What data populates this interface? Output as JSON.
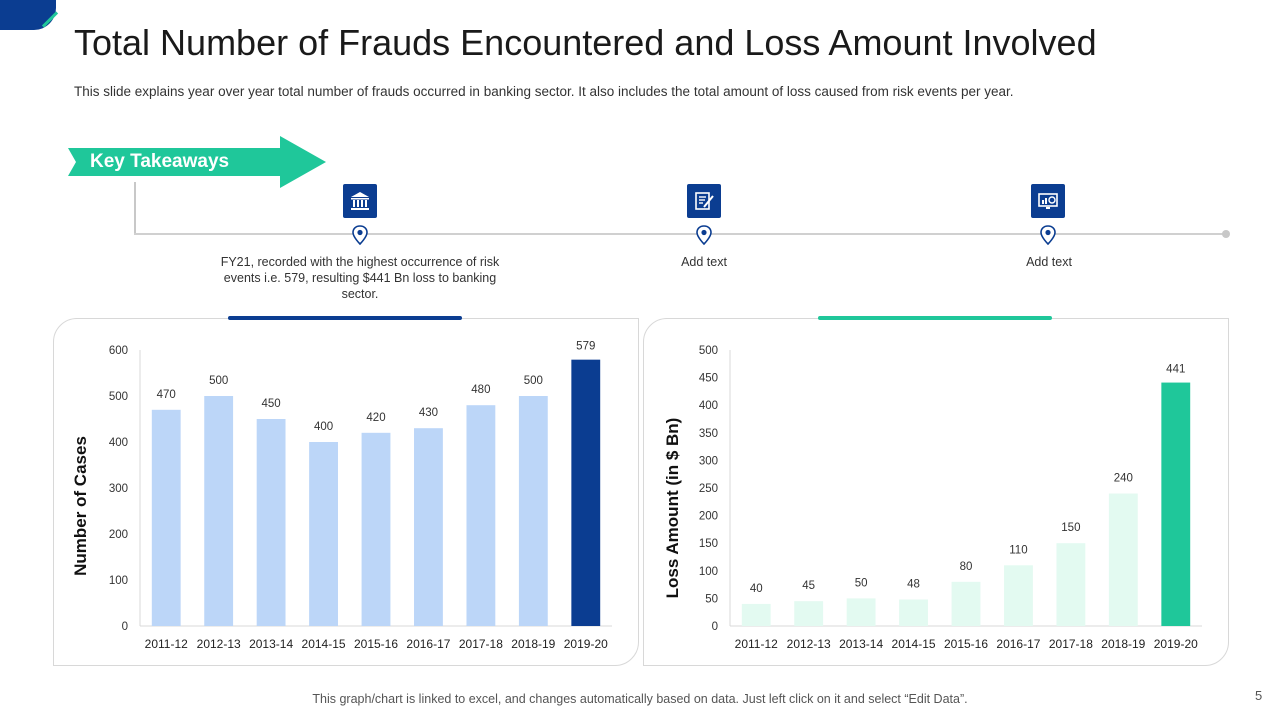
{
  "header": {
    "title": "Total Number of Frauds Encountered and Loss Amount Involved",
    "subtitle": "This slide explains year over year total number of frauds occurred in banking sector. It also includes the total amount of loss caused from risk events per year."
  },
  "takeaways": {
    "label": "Key Takeaways",
    "items": [
      {
        "icon": "bank-icon",
        "text": "FY21, recorded with the highest occurrence of risk events i.e. 579, resulting $441 Bn loss to banking sector."
      },
      {
        "icon": "document-edit-icon",
        "text": "Add text"
      },
      {
        "icon": "monitor-chart-icon",
        "text": "Add text"
      }
    ]
  },
  "colors": {
    "navy": "#0b3d91",
    "green": "#1fc79a",
    "light_blue": "#bcd6f8",
    "light_green": "#e3faf1"
  },
  "chart_data": [
    {
      "type": "bar",
      "ylabel": "Number of Cases",
      "categories": [
        "2011-12",
        "2012-13",
        "2013-14",
        "2014-15",
        "2015-16",
        "2016-17",
        "2017-18",
        "2018-19",
        "2019-20"
      ],
      "values": [
        470,
        500,
        450,
        400,
        420,
        430,
        480,
        500,
        579
      ],
      "ylim": [
        0,
        600
      ],
      "yticks": [
        0,
        100,
        200,
        300,
        400,
        500,
        600
      ],
      "highlight_index": 8,
      "grid": false
    },
    {
      "type": "bar",
      "ylabel": "Loss Amount (in $ Bn)",
      "categories": [
        "2011-12",
        "2012-13",
        "2013-14",
        "2014-15",
        "2015-16",
        "2016-17",
        "2017-18",
        "2018-19",
        "2019-20"
      ],
      "values": [
        40,
        45,
        50,
        48,
        80,
        110,
        150,
        240,
        441
      ],
      "ylim": [
        0,
        500
      ],
      "yticks": [
        0,
        50,
        100,
        150,
        200,
        250,
        300,
        350,
        400,
        450,
        500
      ],
      "highlight_index": 8,
      "grid": false
    }
  ],
  "footer": {
    "note": "This graph/chart is linked to excel, and changes automatically based on data. Just left click on it and select “Edit Data”.",
    "page": "5"
  }
}
